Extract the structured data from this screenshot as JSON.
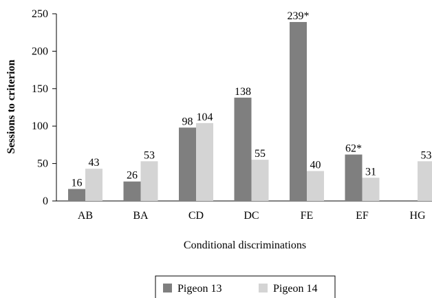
{
  "chart_data": {
    "type": "bar",
    "title": "",
    "xlabel": "Conditional discriminations",
    "ylabel": "Sessions to criterion",
    "ylim": [
      0,
      250
    ],
    "yticks": [
      0,
      50,
      100,
      150,
      200,
      250
    ],
    "categories": [
      "AB",
      "BA",
      "CD",
      "DC",
      "FE",
      "EF",
      "HG"
    ],
    "series": [
      {
        "name": "Pigeon 13",
        "color": "#7f7f7f",
        "values": [
          16,
          26,
          98,
          138,
          239,
          62,
          null
        ],
        "labels": [
          "16",
          "26",
          "98",
          "138",
          "239*",
          "62*",
          ""
        ]
      },
      {
        "name": "Pigeon 14",
        "color": "#d4d4d4",
        "values": [
          43,
          53,
          104,
          55,
          40,
          31,
          53
        ],
        "labels": [
          "43",
          "53",
          "104",
          "55",
          "40",
          "31",
          "53"
        ]
      }
    ],
    "legend_position": "bottom-center",
    "grid": false
  }
}
